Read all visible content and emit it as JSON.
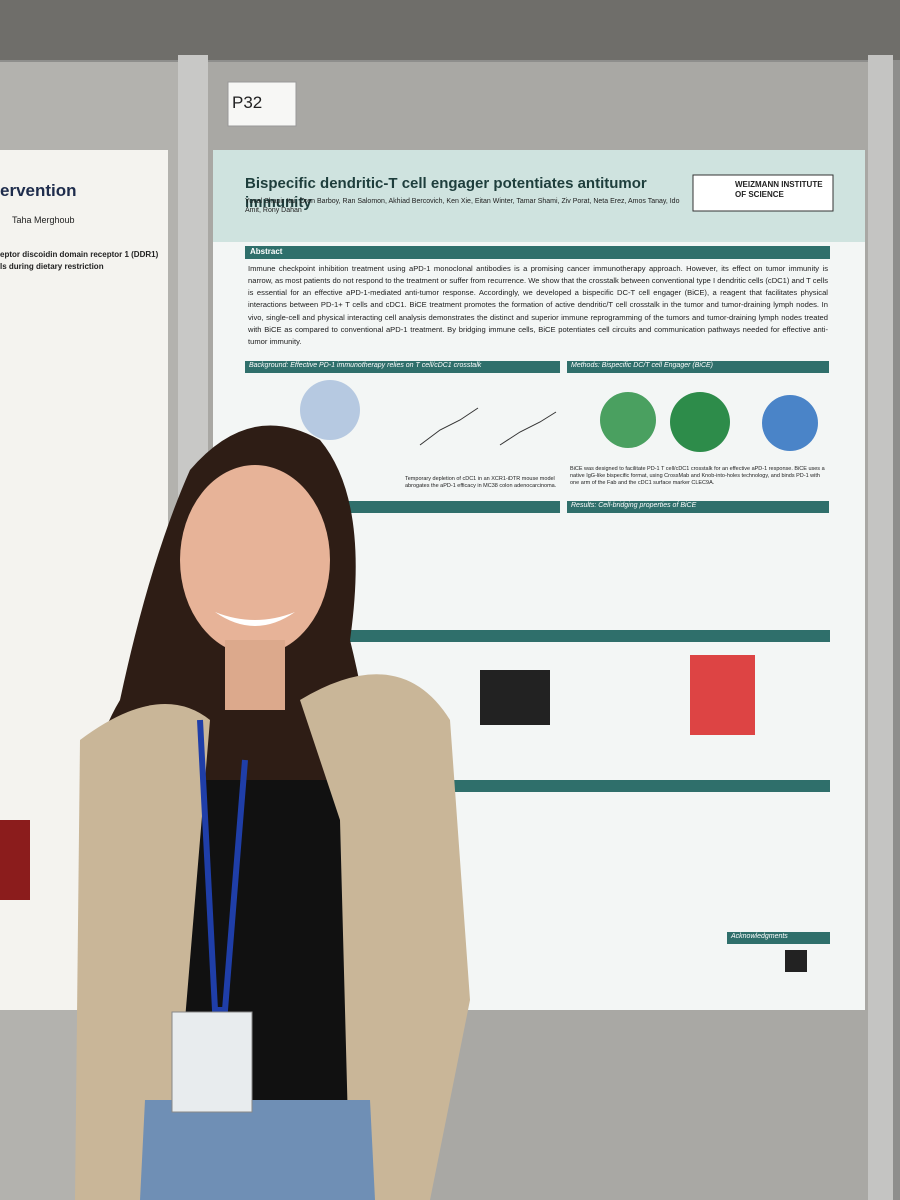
{
  "board_label": "P32",
  "poster": {
    "title": "Bispecific dendritic-T cell engager potentiates antitumor immunity",
    "authors": "Yuval Shapir Itai, Oren Barboy, Ran Salomon, Akhiad Bercovich, Ken Xie, Eitan Winter, Tamar Shami, Ziv Porat, Neta Erez, Amos Tanay, Ido Amit, Rony Dahan",
    "logo": "WEIZMANN INSTITUTE OF SCIENCE",
    "abstract_heading": "Abstract",
    "abstract": "Immune checkpoint inhibition treatment using aPD-1 monoclonal antibodies is a promising cancer immunotherapy approach. However, its effect on tumor immunity is narrow, as most patients do not respond to the treatment or suffer from recurrence. We show that the crosstalk between conventional type I dendritic cells (cDC1) and T cells is essential for an effective aPD-1-mediated anti-tumor response. Accordingly, we developed a bispecific DC-T cell engager (BiCE), a reagent that facilitates physical interactions between PD-1+ T cells and cDC1. BiCE treatment promotes the formation of active dendritic/T cell crosstalk in the tumor and tumor-draining lymph nodes. In vivo, single-cell and physical interacting cell analysis demonstrates the distinct and superior immune reprogramming of the tumors and tumor-draining lymph nodes treated with BiCE as compared to conventional aPD-1 treatment. By bridging immune cells, BiCE potentiates cell circuits and communication pathways needed for effective anti-tumor immunity.",
    "sections": [
      "Background: Effective PD-1 immunotherapy relies on T cell/cDC1 crosstalk",
      "Methods: Bispecific DC/T cell Engager (BiCE)",
      "Results: Cell-bridging properties of BiCE",
      "Acknowledgments"
    ],
    "captions": [
      "Temporary depletion of cDC1 in an XCR1-iDTR mouse model abrogates the aPD-1 efficacy in MC38 colon adenocarcinoma.",
      "BiCE was designed to facilitate PD-1 T cell/cDC1 crosstalk for an effective aPD-1 response. BiCE uses a native IgG-like bispecific format, using CrossMab and Knob-into-holes technology, and binds PD-1 with one arm of the Fab and the cDC1 surface marker CLEC9A."
    ]
  },
  "left_poster": {
    "title_fragment": "ervention",
    "author_fragment": "Taha Merghoub",
    "subtitle": [
      "eptor discoidin domain receptor 1 (DDR1)",
      "ls during dietary restriction"
    ]
  }
}
